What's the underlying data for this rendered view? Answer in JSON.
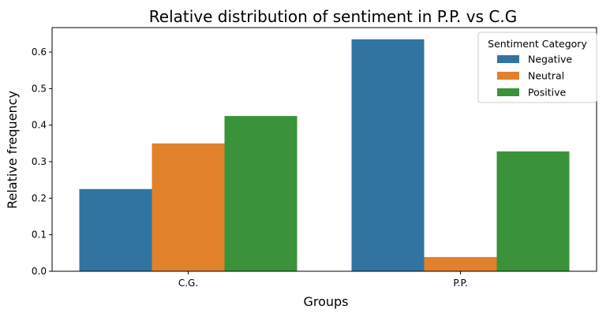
{
  "chart_data": {
    "type": "bar",
    "title": "Relative distribution of sentiment in P.P. vs C.G",
    "xlabel": "Groups",
    "ylabel": "Relative frequency",
    "categories": [
      "C.G.",
      "P.P."
    ],
    "series": [
      {
        "name": "Negative",
        "values": [
          0.225,
          0.635
        ],
        "color": "#3274a1"
      },
      {
        "name": "Neutral",
        "values": [
          0.35,
          0.039
        ],
        "color": "#e1812c"
      },
      {
        "name": "Positive",
        "values": [
          0.425,
          0.328
        ],
        "color": "#3a923a"
      }
    ],
    "ylim": [
      0,
      0.667
    ],
    "yticks": [
      0.0,
      0.1,
      0.2,
      0.3,
      0.4,
      0.5,
      0.6
    ],
    "ytick_labels": [
      "0.0",
      "0.1",
      "0.2",
      "0.3",
      "0.4",
      "0.5",
      "0.6"
    ],
    "grid": false,
    "legend": {
      "title": "Sentiment Category",
      "position": "top-right"
    }
  }
}
